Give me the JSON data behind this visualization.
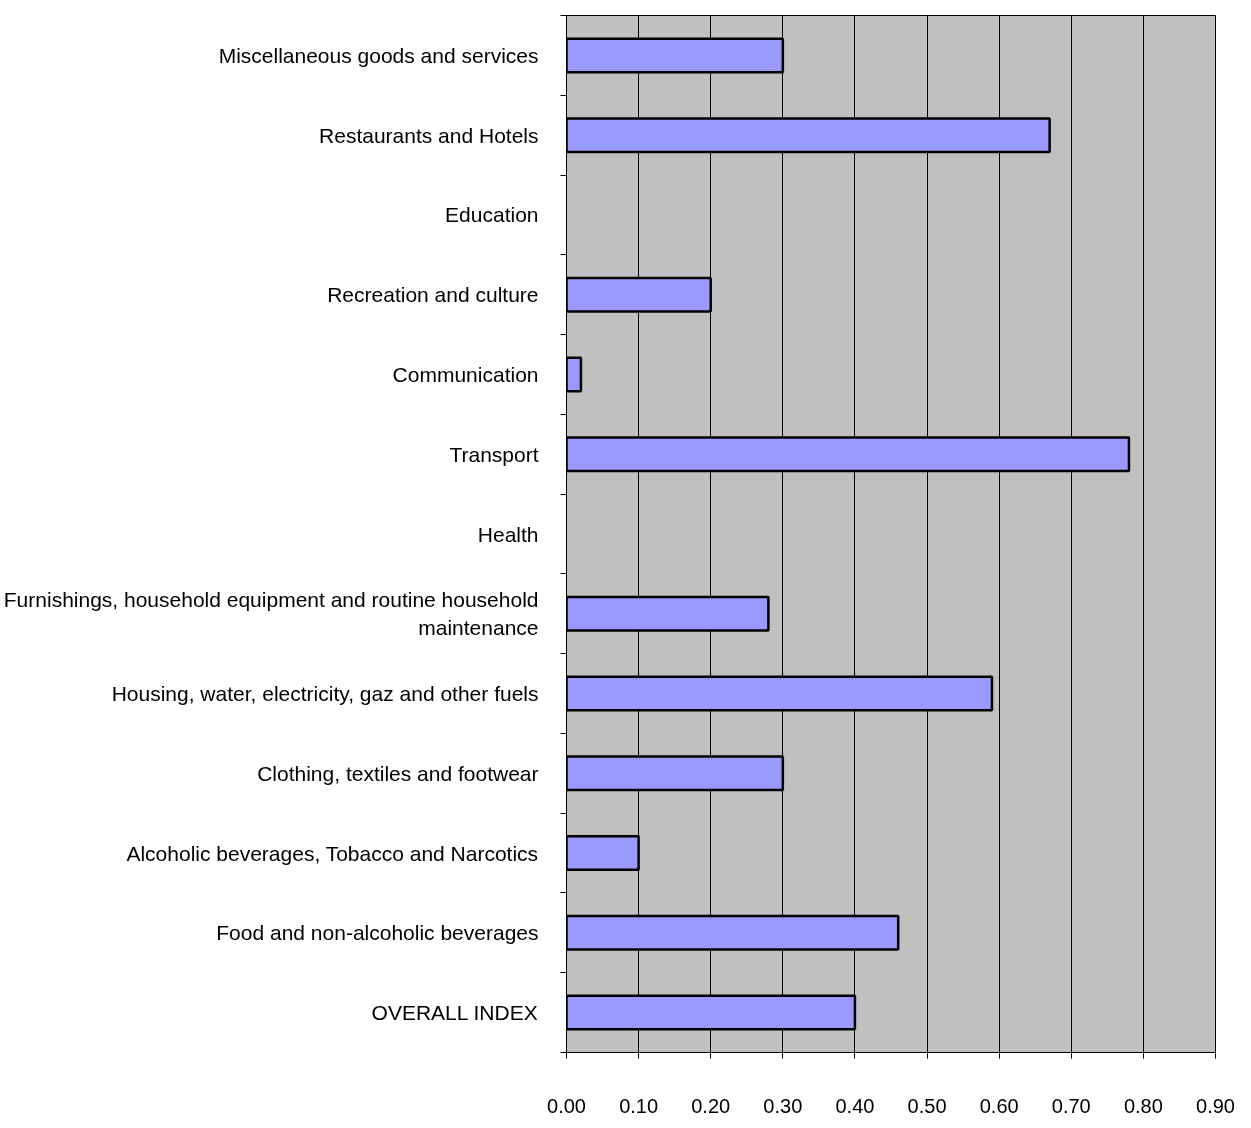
{
  "chart_data": {
    "type": "bar",
    "orientation": "horizontal",
    "categories": [
      "Miscellaneous goods and services",
      "Restaurants and Hotels",
      "Education",
      "Recreation and culture",
      "Communication",
      "Transport",
      "Health",
      "Furnishings, household equipment and routine household maintenance",
      "Housing, water, electricity, gaz and other fuels",
      "Clothing, textiles and footwear",
      "Alcoholic beverages, Tobacco and Narcotics",
      "Food and non-alcoholic beverages",
      "OVERALL INDEX"
    ],
    "values": [
      0.3,
      0.67,
      null,
      0.2,
      0.02,
      0.78,
      null,
      0.28,
      0.59,
      0.3,
      0.1,
      0.46,
      0.4
    ],
    "color": "#9999ff",
    "xlim": [
      0,
      0.9
    ],
    "xticks": [
      {
        "value": 0,
        "label": "0.00"
      },
      {
        "value": 0.1,
        "label": "0.10"
      },
      {
        "value": 0.2,
        "label": "0.20"
      },
      {
        "value": 0.3,
        "label": "0.30"
      },
      {
        "value": 0.4,
        "label": "0.40"
      },
      {
        "value": 0.5,
        "label": "0.50"
      },
      {
        "value": 0.6,
        "label": "0.60"
      },
      {
        "value": 0.7,
        "label": "0.70"
      },
      {
        "value": 0.8,
        "label": "0.80"
      },
      {
        "value": 0.9,
        "label": "0.90"
      }
    ],
    "grid": "x"
  }
}
